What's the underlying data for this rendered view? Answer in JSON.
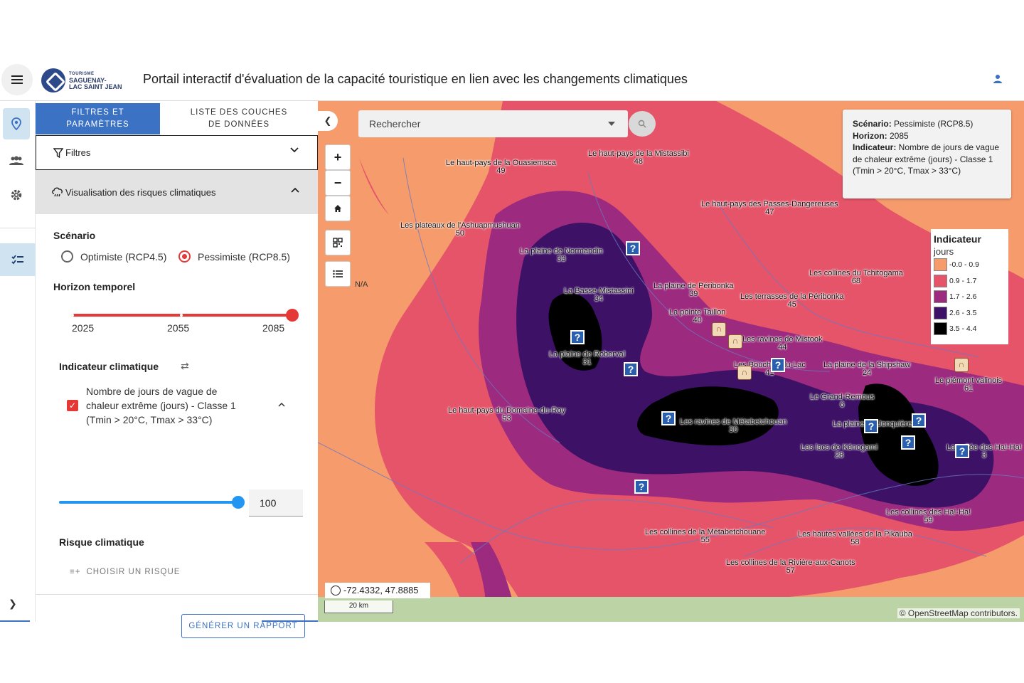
{
  "header": {
    "menu_icon": "hamburger-icon",
    "logo": {
      "line1": "TOURISME",
      "line2": "SAGUENAY-",
      "line3": "LAC SAINT JEAN"
    },
    "title": "Portail interactif d'évaluation de la capacité touristique en lien avec les changements climatiques",
    "user_icon": "user-icon"
  },
  "rail": {
    "items": [
      "map-pin-icon",
      "people-icon",
      "gear-icon",
      "list-check-icon"
    ],
    "expand_icon": "chevron-right-icon"
  },
  "panel": {
    "tabs": [
      {
        "label_1": "FILTRES ET",
        "label_2": "PARAMÈTRES",
        "active": true
      },
      {
        "label_1": "LISTE DES COUCHES",
        "label_2": "DE DONNÉES",
        "active": false
      }
    ],
    "filters": {
      "label": "Filtres"
    },
    "viz": {
      "label": "Visualisation des risques climatiques"
    },
    "scenario": {
      "label": "Scénario",
      "options": [
        {
          "label": "Optimiste (RCP4.5)",
          "selected": false
        },
        {
          "label": "Pessimiste (RCP8.5)",
          "selected": true
        }
      ]
    },
    "horizon": {
      "label": "Horizon temporel",
      "ticks": [
        "2025",
        "2055",
        "2085"
      ],
      "value": "2085"
    },
    "indicator": {
      "label": "Indicateur climatique",
      "line1": "Nombre de jours de vague de",
      "line2": "chaleur extrême (jours) - Classe 1",
      "line3": "(Tmin > 20°C, Tmax > 33°C)",
      "checked": true,
      "value": "100",
      "slider_fraction": 1.0
    },
    "risk": {
      "label": "Risque climatique",
      "add_label": "CHOISIR UN RISQUE"
    },
    "report_button": "GÉNÉRER UN RAPPORT"
  },
  "map": {
    "search_placeholder": "Rechercher",
    "info": {
      "scenario_key": "Scénario:",
      "scenario_val": " Pessimiste (RCP8.5)",
      "horizon_key": "Horizon:",
      "horizon_val": " 2085",
      "indicator_key": "Indicateur:",
      "indicator_val": " Nombre de jours de vague de chaleur extrême (jours) - Classe 1 (Tmin > 20°C, Tmax > 33°C)"
    },
    "legend": {
      "title": "Indicateur",
      "subtitle": "jours",
      "classes": [
        {
          "label": "-0.0 - 0.9",
          "color": "#f59b6c"
        },
        {
          "label": "0.9 - 1.7",
          "color": "#e6546a"
        },
        {
          "label": "1.7 - 2.6",
          "color": "#9c2a7e"
        },
        {
          "label": "2.6 - 3.5",
          "color": "#3d1166"
        },
        {
          "label": "3.5 - 4.4",
          "color": "#000000"
        }
      ]
    },
    "na_label": "N/A",
    "coordinates": "-72.4332, 47.8885",
    "scale": "20 km",
    "attribution": "© OpenStreetMap contributors.",
    "places": [
      {
        "name": "Le haut-pays de la Ouasiemsca",
        "num": "49"
      },
      {
        "name": "Le haut-pays de la Mistassibi",
        "num": "48"
      },
      {
        "name": "Le haut-pays des Passes-Dangereuses",
        "num": "47"
      },
      {
        "name": "Les plateaux de l'Ashuapmushuan",
        "num": "50"
      },
      {
        "name": "La plaine de Normandin",
        "num": "33"
      },
      {
        "name": "La Basse-Mistassini",
        "num": "34"
      },
      {
        "name": "La plaine de Péribonka",
        "num": "39"
      },
      {
        "name": "Les terrasses de la Péribonka",
        "num": "45"
      },
      {
        "name": "Les collines du Tchitogama",
        "num": "68"
      },
      {
        "name": "La pointe Taillon",
        "num": "40"
      },
      {
        "name": "Les ravines de Mistook",
        "num": "44"
      },
      {
        "name": "La plaine de Roberval",
        "num": "31"
      },
      {
        "name": "Les Bouches-du-Lac",
        "num": "41"
      },
      {
        "name": "La plaine de la Shipshaw",
        "num": "24"
      },
      {
        "name": "Le piémont valinois",
        "num": "61"
      },
      {
        "name": "Le Grand-Remous",
        "num": "6"
      },
      {
        "name": "Le haut-pays du Domaine-du-Roy",
        "num": "53"
      },
      {
        "name": "Les ravines de Métabetchouan",
        "num": "30"
      },
      {
        "name": "La plaine de Jonquière",
        "num": ""
      },
      {
        "name": "Les lacs de Kénogami",
        "num": "28"
      },
      {
        "name": "La vallée des Ha!-Ha!",
        "num": "3"
      },
      {
        "name": "Les collines des Ha!-Ha!",
        "num": "59"
      },
      {
        "name": "Les collines de la Métabetchouane",
        "num": "55"
      },
      {
        "name": "Les hautes vallées de la Pikauba",
        "num": "58"
      },
      {
        "name": "Les collines de la Rivière-aux-Canots",
        "num": "57"
      }
    ]
  }
}
